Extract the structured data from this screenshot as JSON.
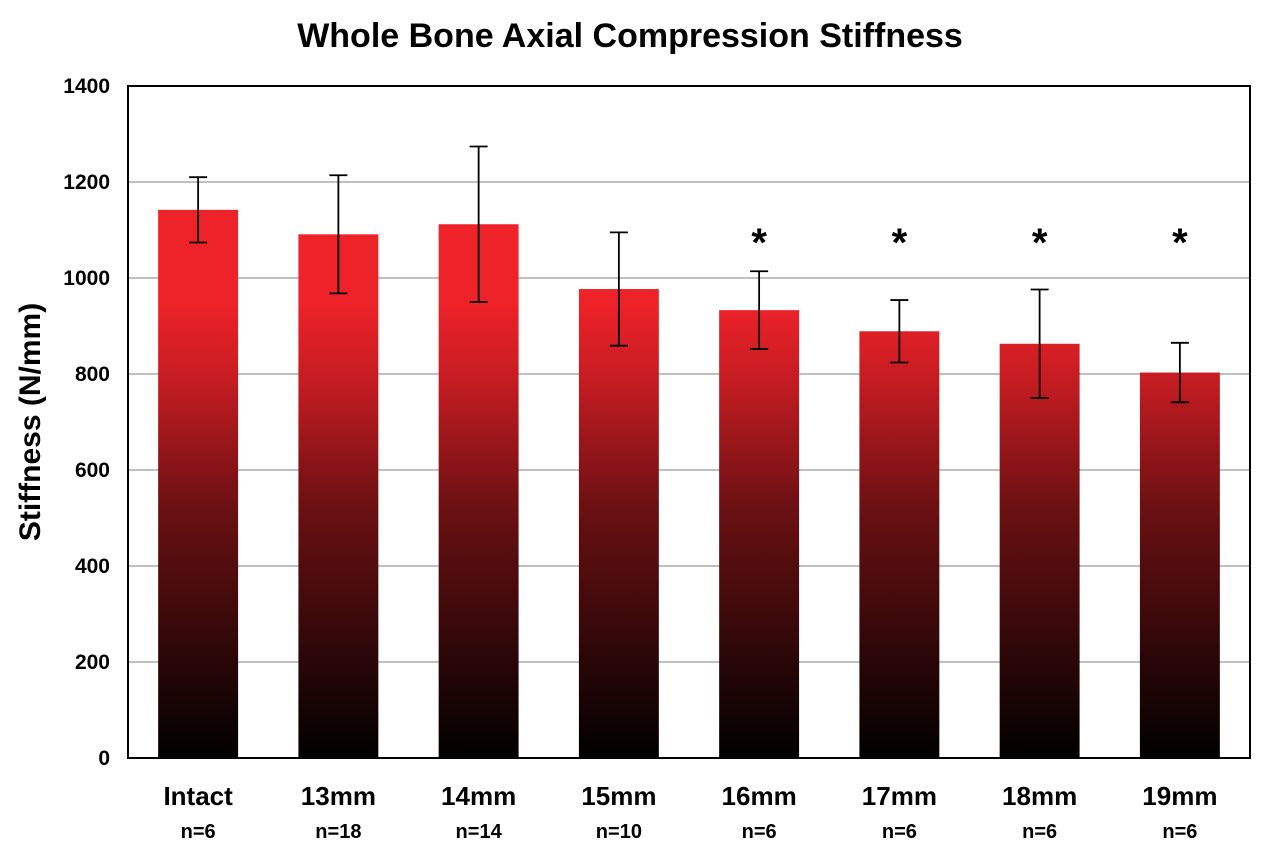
{
  "chart_data": {
    "type": "bar",
    "title": "Whole Bone Axial Compression Stiffness",
    "xlabel": "",
    "ylabel": "Stiffness (N/mm)",
    "ylim": [
      0,
      1400
    ],
    "yticks": [
      0,
      200,
      400,
      600,
      800,
      1000,
      1200,
      1400
    ],
    "grid": true,
    "legend": "none",
    "categories": [
      "Intact",
      "13mm",
      "14mm",
      "15mm",
      "16mm",
      "17mm",
      "18mm",
      "19mm"
    ],
    "sample_sizes": [
      "n=6",
      "n=18",
      "n=14",
      "n=10",
      "n=6",
      "n=6",
      "n=6",
      "n=6"
    ],
    "values": [
      1142,
      1091,
      1112,
      977,
      933,
      889,
      863,
      803
    ],
    "error": [
      68,
      123,
      162,
      118,
      81,
      65,
      113,
      62
    ],
    "significance": [
      "",
      "",
      "",
      "",
      "*",
      "*",
      "*",
      "*"
    ],
    "colors": {
      "bar_top": "#ee2229",
      "bar_mid": "#6b1012",
      "bar_bottom": "#000000",
      "grid": "#9a9a9a",
      "axis": "#000000"
    }
  }
}
